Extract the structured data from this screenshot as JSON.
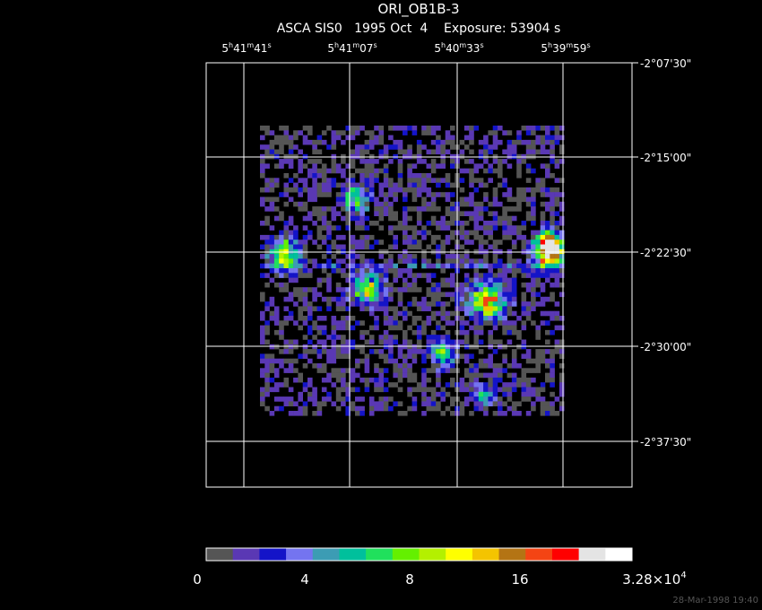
{
  "header": {
    "title": "ORI_OB1B-3",
    "subtitle": "ASCA SIS0   1995 Oct  4    Exposure: 53904 s"
  },
  "ra_units": [
    "h",
    "m",
    "s"
  ],
  "ra_labels": [
    {
      "hours": "5",
      "minutes": "41",
      "seconds": "41"
    },
    {
      "hours": "5",
      "minutes": "41",
      "seconds": "07"
    },
    {
      "hours": "5",
      "minutes": "40",
      "seconds": "33"
    },
    {
      "hours": "5",
      "minutes": "39",
      "seconds": "59"
    }
  ],
  "dec_labels": [
    "-2°07'30\"",
    "-2°15'00\"",
    "-2°22'30\"",
    "-2°30'00\"",
    "-2°37'30\""
  ],
  "colorbar": {
    "colors": [
      "#555555",
      "#5a38b4",
      "#1414c8",
      "#7474f0",
      "#3c9cb4",
      "#00c09c",
      "#20e05c",
      "#64f000",
      "#b4f000",
      "#ffff00",
      "#f4c400",
      "#b47414",
      "#f44414",
      "#ff0000",
      "#e4e4e4",
      "#ffffff"
    ],
    "labels": [
      "0",
      "4",
      "8",
      "16"
    ],
    "max_label": {
      "mantissa": "3.28×10",
      "exponent": "4"
    }
  },
  "timestamp": "28-Mar-1998 19:40"
}
